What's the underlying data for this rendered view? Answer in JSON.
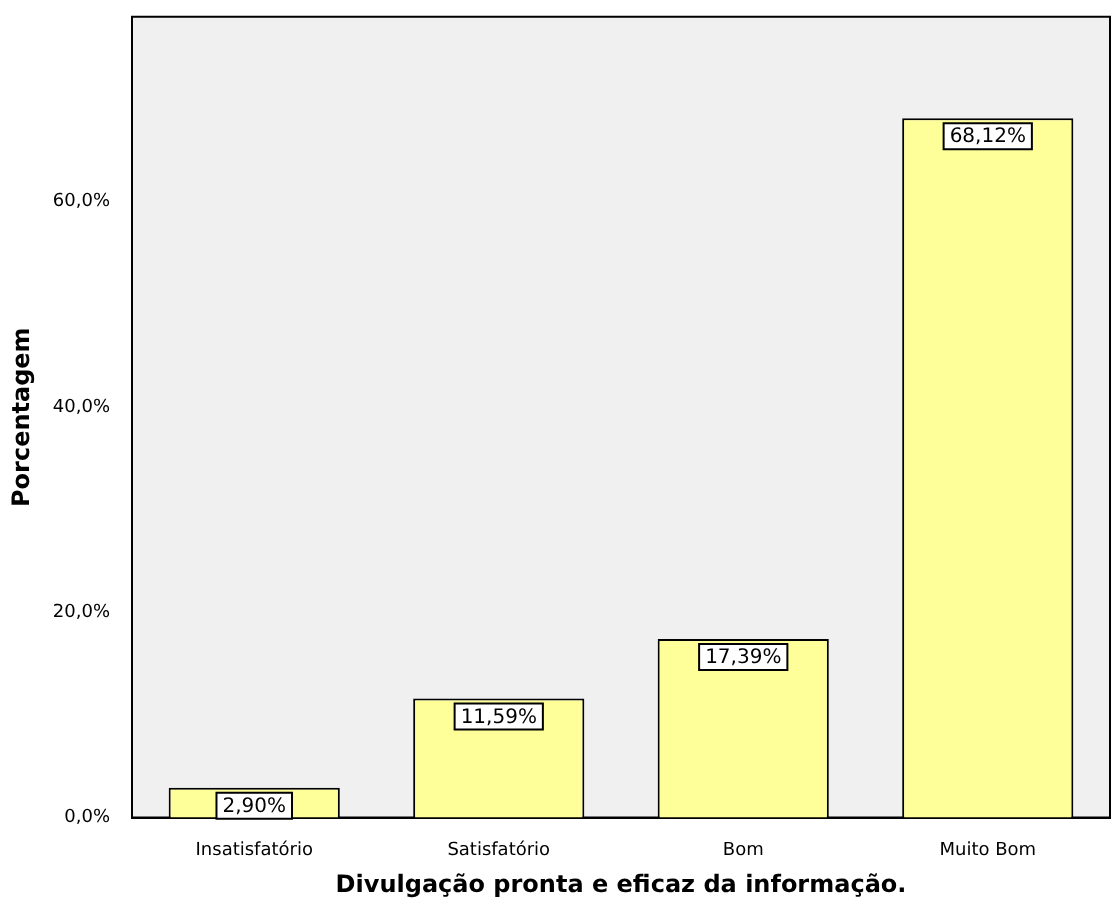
{
  "chart_data": {
    "type": "bar",
    "xlabel": "Divulgação pronta e eficaz da informação.",
    "ylabel": "Porcentagem",
    "categories": [
      "Insatisfatório",
      "Satisfatório",
      "Bom",
      "Muito Bom"
    ],
    "values": [
      2.9,
      11.59,
      17.39,
      68.12
    ],
    "value_labels": [
      "2,90%",
      "11,59%",
      "17,39%",
      "68,12%"
    ],
    "color": "#ffff99",
    "ylim": [
      0,
      78
    ],
    "yticks": [
      {
        "value": 0,
        "label": "0,0%"
      },
      {
        "value": 20,
        "label": "20,0%"
      },
      {
        "value": 40,
        "label": "40,0%"
      },
      {
        "value": 60,
        "label": "60,0%"
      }
    ],
    "grid": false,
    "legend": false
  }
}
